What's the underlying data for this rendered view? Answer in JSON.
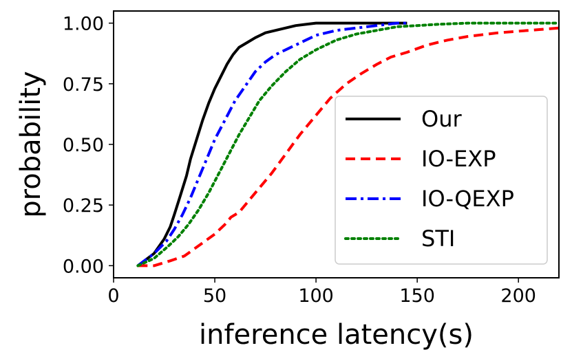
{
  "chart_data": {
    "type": "line",
    "title": "",
    "xlabel": "inference latency(s)",
    "ylabel": "probability",
    "xlim": [
      0,
      220
    ],
    "ylim": [
      -0.05,
      1.05
    ],
    "xticks": [
      0,
      50,
      100,
      150,
      200
    ],
    "xtick_labels": [
      "0",
      "50",
      "100",
      "150",
      "200"
    ],
    "yticks": [
      0.0,
      0.25,
      0.5,
      0.75,
      1.0
    ],
    "ytick_labels": [
      "0.00",
      "0.25",
      "0.50",
      "0.75",
      "1.00"
    ],
    "grid": false,
    "legend_position": "center-right",
    "series": [
      {
        "name": "Our",
        "color": "#000000",
        "style": "solid",
        "x": [
          12,
          20,
          25,
          28,
          30,
          33,
          36,
          38,
          41,
          44,
          47,
          50,
          53,
          56,
          59,
          62,
          66,
          70,
          75,
          80,
          85,
          90,
          95,
          100,
          110,
          120,
          130,
          145
        ],
        "y": [
          0.0,
          0.05,
          0.11,
          0.16,
          0.21,
          0.29,
          0.37,
          0.44,
          0.52,
          0.6,
          0.67,
          0.73,
          0.78,
          0.83,
          0.87,
          0.9,
          0.92,
          0.94,
          0.96,
          0.97,
          0.98,
          0.99,
          0.995,
          1.0,
          1.0,
          1.0,
          1.0,
          1.0
        ]
      },
      {
        "name": "IO-EXP",
        "color": "#ff0000",
        "style": "dashed",
        "x": [
          12,
          20,
          28,
          35,
          40,
          45,
          50,
          55,
          58,
          62,
          67,
          72,
          78,
          85,
          92,
          100,
          107,
          115,
          122,
          130,
          137,
          145,
          155,
          165,
          175,
          190,
          205,
          220
        ],
        "y": [
          0.0,
          0.0,
          0.02,
          0.04,
          0.07,
          0.1,
          0.13,
          0.17,
          0.2,
          0.22,
          0.27,
          0.32,
          0.38,
          0.46,
          0.54,
          0.62,
          0.69,
          0.75,
          0.79,
          0.83,
          0.86,
          0.88,
          0.91,
          0.93,
          0.945,
          0.96,
          0.97,
          0.98
        ]
      },
      {
        "name": "IO-QEXP",
        "color": "#0000ff",
        "style": "dashdot",
        "x": [
          12,
          20,
          26,
          30,
          34,
          38,
          42,
          46,
          50,
          55,
          60,
          65,
          70,
          75,
          80,
          85,
          90,
          95,
          100,
          110,
          120,
          130,
          140,
          145
        ],
        "y": [
          0.0,
          0.05,
          0.1,
          0.15,
          0.21,
          0.28,
          0.36,
          0.44,
          0.52,
          0.6,
          0.68,
          0.74,
          0.8,
          0.84,
          0.87,
          0.89,
          0.91,
          0.93,
          0.95,
          0.97,
          0.98,
          0.99,
          1.0,
          1.0
        ]
      },
      {
        "name": "STI",
        "color": "#008000",
        "style": "dotted",
        "x": [
          12,
          20,
          27,
          32,
          37,
          42,
          47,
          52,
          57,
          62,
          67,
          72,
          78,
          85,
          92,
          100,
          110,
          120,
          130,
          140,
          150,
          160,
          175,
          190,
          220
        ],
        "y": [
          0.0,
          0.03,
          0.08,
          0.12,
          0.17,
          0.23,
          0.3,
          0.38,
          0.46,
          0.54,
          0.61,
          0.68,
          0.74,
          0.8,
          0.85,
          0.89,
          0.93,
          0.955,
          0.97,
          0.985,
          0.99,
          0.995,
          1.0,
          1.0,
          1.0
        ]
      }
    ]
  }
}
